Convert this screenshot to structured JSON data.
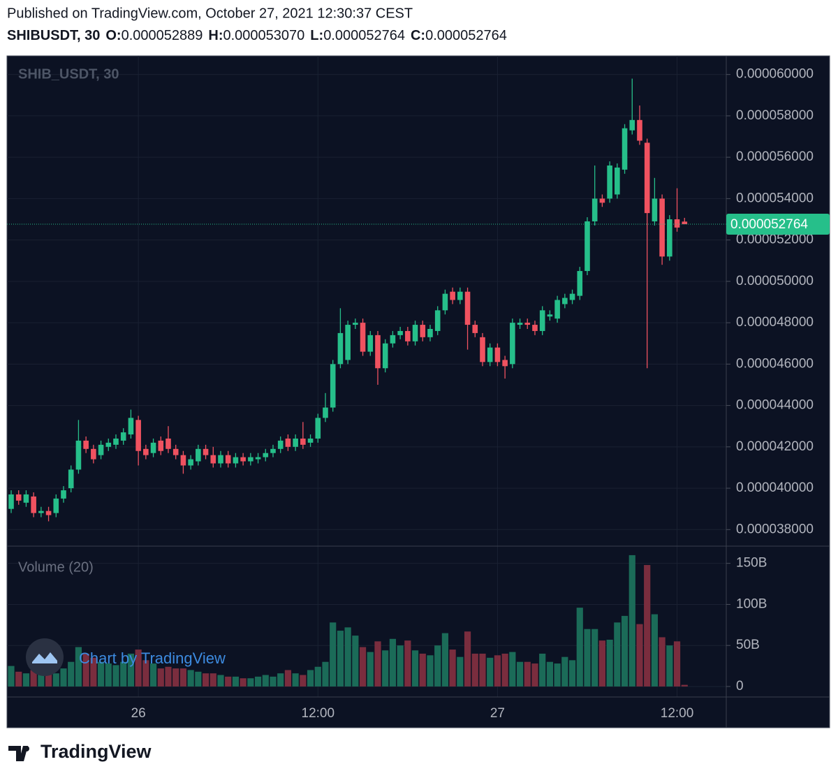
{
  "header": {
    "published": "Published on TradingView.com, October 27, 2021 12:30:37 CEST",
    "symbol": "SHIBUSDT, 30",
    "o_key": "O:",
    "o": "0.000052889",
    "h_key": "H:",
    "h": "0.000053070",
    "l_key": "L:",
    "l": "0.000052764",
    "c_key": "C:",
    "c": "0.000052764"
  },
  "footer": {
    "watermark": "Chart by TradingView",
    "brand": "TradingView"
  },
  "chart_data": {
    "type": "candlestick",
    "title": "SHIB_USDT, 30",
    "volume_title": "Volume (20)",
    "categories": [
      null,
      null,
      null,
      null,
      null,
      null,
      null,
      null,
      null,
      null,
      null,
      null,
      null,
      null,
      null,
      null,
      null,
      "26",
      null,
      null,
      null,
      null,
      null,
      null,
      null,
      null,
      null,
      null,
      null,
      null,
      null,
      null,
      null,
      null,
      null,
      null,
      null,
      null,
      null,
      null,
      null,
      "12:00",
      null,
      null,
      null,
      null,
      null,
      null,
      null,
      null,
      null,
      null,
      null,
      null,
      null,
      null,
      null,
      null,
      null,
      null,
      null,
      null,
      null,
      null,
      null,
      "27",
      null,
      null,
      null,
      null,
      null,
      null,
      null,
      null,
      null,
      null,
      null,
      null,
      null,
      null,
      null,
      null,
      null,
      null,
      null,
      null,
      null,
      null,
      null,
      "12:00",
      null
    ],
    "open": [
      3.9e-05,
      3.97e-05,
      3.93e-05,
      3.96e-05,
      3.88e-05,
      3.89e-05,
      3.88e-05,
      3.95e-05,
      4e-05,
      4.09e-05,
      4.23e-05,
      4.19e-05,
      4.16e-05,
      4.2e-05,
      4.21e-05,
      4.23e-05,
      4.26e-05,
      4.33e-05,
      4.19e-05,
      4.17e-05,
      4.23e-05,
      4.24e-05,
      4.19e-05,
      4.16e-05,
      4.11e-05,
      4.13e-05,
      4.19e-05,
      4.16e-05,
      4.12e-05,
      4.16e-05,
      4.12e-05,
      4.15e-05,
      4.13e-05,
      4.14e-05,
      4.15e-05,
      4.17e-05,
      4.19e-05,
      4.24e-05,
      4.2e-05,
      4.24e-05,
      4.22e-05,
      4.24e-05,
      4.34e-05,
      4.39e-05,
      4.6e-05,
      4.62e-05,
      4.79e-05,
      4.8e-05,
      4.66e-05,
      4.74e-05,
      4.58e-05,
      4.7e-05,
      4.74e-05,
      4.76e-05,
      4.71e-05,
      4.79e-05,
      4.73e-05,
      4.76e-05,
      4.86e-05,
      4.95e-05,
      4.91e-05,
      4.95e-05,
      4.79e-05,
      4.73e-05,
      4.61e-05,
      4.68e-05,
      4.62e-05,
      4.6e-05,
      4.79e-05,
      4.8e-05,
      4.79e-05,
      4.76e-05,
      4.83e-05,
      4.82e-05,
      4.89e-05,
      4.91e-05,
      4.93e-05,
      5.05e-05,
      5.29e-05,
      5.4e-05,
      5.4e-05,
      5.42e-05,
      5.54e-05,
      5.73e-05,
      5.78e-05,
      5.67e-05,
      5.29e-05,
      5.4e-05,
      5.12e-05,
      5.3e-05,
      5.2889e-05
    ],
    "high": [
      3.99e-05,
      3.99e-05,
      3.99e-05,
      3.98e-05,
      3.91e-05,
      3.91e-05,
      3.97e-05,
      4.01e-05,
      4.11e-05,
      4.33e-05,
      4.25e-05,
      4.21e-05,
      4.23e-05,
      4.24e-05,
      4.26e-05,
      4.29e-05,
      4.38e-05,
      4.35e-05,
      4.21e-05,
      4.24e-05,
      4.25e-05,
      4.3e-05,
      4.21e-05,
      4.18e-05,
      4.16e-05,
      4.21e-05,
      4.21e-05,
      4.2e-05,
      4.18e-05,
      4.18e-05,
      4.17e-05,
      4.17e-05,
      4.17e-05,
      4.17e-05,
      4.19e-05,
      4.21e-05,
      4.25e-05,
      4.26e-05,
      4.26e-05,
      4.32e-05,
      4.26e-05,
      4.36e-05,
      4.46e-05,
      4.62e-05,
      4.87e-05,
      4.81e-05,
      4.82e-05,
      4.82e-05,
      4.76e-05,
      4.76e-05,
      4.72e-05,
      4.76e-05,
      4.78e-05,
      4.78e-05,
      4.81e-05,
      4.81e-05,
      4.79e-05,
      4.88e-05,
      4.96e-05,
      4.97e-05,
      4.97e-05,
      4.97e-05,
      4.81e-05,
      4.75e-05,
      4.7e-05,
      4.7e-05,
      4.64e-05,
      4.82e-05,
      4.82e-05,
      4.82e-05,
      4.81e-05,
      4.88e-05,
      4.86e-05,
      4.93e-05,
      4.94e-05,
      4.96e-05,
      5.07e-05,
      5.31e-05,
      5.56e-05,
      5.42e-05,
      5.58e-05,
      5.57e-05,
      5.76e-05,
      5.98e-05,
      5.85e-05,
      5.69e-05,
      5.5e-05,
      5.42e-05,
      5.32e-05,
      5.45e-05,
      5.307e-05
    ],
    "low": [
      3.88e-05,
      3.92e-05,
      3.91e-05,
      3.86e-05,
      3.86e-05,
      3.84e-05,
      3.86e-05,
      3.93e-05,
      3.98e-05,
      4.07e-05,
      4.17e-05,
      4.12e-05,
      4.14e-05,
      4.18e-05,
      4.19e-05,
      4.21e-05,
      4.24e-05,
      4.11e-05,
      4.14e-05,
      4.15e-05,
      4.16e-05,
      4.17e-05,
      4.14e-05,
      4.07e-05,
      4.09e-05,
      4.11e-05,
      4.14e-05,
      4.1e-05,
      4.1e-05,
      4.1e-05,
      4.1e-05,
      4.11e-05,
      4.11e-05,
      4.12e-05,
      4.13e-05,
      4.15e-05,
      4.17e-05,
      4.18e-05,
      4.18e-05,
      4.19e-05,
      4.2e-05,
      4.22e-05,
      4.32e-05,
      4.37e-05,
      4.58e-05,
      4.6e-05,
      4.77e-05,
      4.64e-05,
      4.64e-05,
      4.5e-05,
      4.56e-05,
      4.68e-05,
      4.72e-05,
      4.69e-05,
      4.69e-05,
      4.71e-05,
      4.71e-05,
      4.74e-05,
      4.84e-05,
      4.89e-05,
      4.89e-05,
      4.67e-05,
      4.73e-05,
      4.59e-05,
      4.59e-05,
      4.59e-05,
      4.53e-05,
      4.58e-05,
      4.77e-05,
      4.77e-05,
      4.74e-05,
      4.74e-05,
      4.81e-05,
      4.8e-05,
      4.87e-05,
      4.89e-05,
      4.91e-05,
      5.03e-05,
      5.27e-05,
      5.36e-05,
      5.38e-05,
      5.4e-05,
      5.52e-05,
      5.71e-05,
      5.66e-05,
      4.58e-05,
      5.27e-05,
      5.08e-05,
      5.1e-05,
      5.24e-05,
      5.2764e-05
    ],
    "close": [
      3.97e-05,
      3.94e-05,
      3.97e-05,
      3.88e-05,
      3.89e-05,
      3.87e-05,
      3.95e-05,
      3.99e-05,
      4.09e-05,
      4.23e-05,
      4.19e-05,
      4.14e-05,
      4.21e-05,
      4.22e-05,
      4.24e-05,
      4.27e-05,
      4.34e-05,
      4.18e-05,
      4.16e-05,
      4.22e-05,
      4.18e-05,
      4.19e-05,
      4.16e-05,
      4.11e-05,
      4.14e-05,
      4.19e-05,
      4.16e-05,
      4.12e-05,
      4.16e-05,
      4.12e-05,
      4.15e-05,
      4.13e-05,
      4.15e-05,
      4.15e-05,
      4.17e-05,
      4.19e-05,
      4.23e-05,
      4.2e-05,
      4.24e-05,
      4.21e-05,
      4.24e-05,
      4.34e-05,
      4.39e-05,
      4.6e-05,
      4.75e-05,
      4.79e-05,
      4.8e-05,
      4.66e-05,
      4.74e-05,
      4.58e-05,
      4.7e-05,
      4.74e-05,
      4.76e-05,
      4.71e-05,
      4.79e-05,
      4.73e-05,
      4.77e-05,
      4.86e-05,
      4.94e-05,
      4.91e-05,
      4.95e-05,
      4.79e-05,
      4.75e-05,
      4.61e-05,
      4.68e-05,
      4.61e-05,
      4.59e-05,
      4.8e-05,
      4.8e-05,
      4.79e-05,
      4.76e-05,
      4.86e-05,
      4.84e-05,
      4.91e-05,
      4.92e-05,
      4.94e-05,
      5.05e-05,
      5.29e-05,
      5.4e-05,
      5.38e-05,
      5.56e-05,
      5.55e-05,
      5.74e-05,
      5.78e-05,
      5.68e-05,
      5.33e-05,
      5.4e-05,
      5.12e-05,
      5.3e-05,
      5.26e-05,
      5.2764e-05
    ],
    "volume": [
      25,
      18,
      16,
      20,
      17,
      15,
      16,
      22,
      30,
      48,
      40,
      35,
      30,
      28,
      26,
      30,
      40,
      45,
      32,
      28,
      22,
      24,
      22,
      22,
      20,
      18,
      16,
      16,
      14,
      12,
      12,
      10,
      10,
      12,
      14,
      12,
      16,
      20,
      16,
      14,
      20,
      24,
      30,
      78,
      68,
      72,
      62,
      48,
      42,
      55,
      44,
      58,
      50,
      56,
      44,
      40,
      38,
      50,
      65,
      45,
      36,
      67,
      40,
      40,
      35,
      38,
      40,
      42,
      30,
      30,
      28,
      40,
      30,
      28,
      36,
      32,
      96,
      70,
      70,
      56,
      57,
      78,
      86,
      160,
      76,
      148,
      88,
      60,
      50,
      55,
      2
    ],
    "ylim": [
      3.72e-05,
      6.09e-05
    ],
    "yticks": [
      {
        "value": 3.8e-05,
        "label": "0.000038000"
      },
      {
        "value": 4e-05,
        "label": "0.000040000"
      },
      {
        "value": 4.2e-05,
        "label": "0.000042000"
      },
      {
        "value": 4.4e-05,
        "label": "0.000044000"
      },
      {
        "value": 4.6e-05,
        "label": "0.000046000"
      },
      {
        "value": 4.8e-05,
        "label": "0.000048000"
      },
      {
        "value": 5e-05,
        "label": "0.000050000"
      },
      {
        "value": 5.2e-05,
        "label": "0.000052000"
      },
      {
        "value": 5.4e-05,
        "label": "0.000054000"
      },
      {
        "value": 5.6e-05,
        "label": "0.000056000"
      },
      {
        "value": 5.8e-05,
        "label": "0.000058000"
      },
      {
        "value": 6e-05,
        "label": "0.000060000"
      }
    ],
    "volume_ylim": [
      -12.8,
      171
    ],
    "volume_yticks": [
      0,
      {
        "value": 50,
        "label": "50B"
      },
      {
        "value": 100,
        "label": "100B"
      },
      {
        "value": 150,
        "label": "150B"
      }
    ],
    "grid": true,
    "up_color": "#26bf8a",
    "down_color": "#f05260",
    "volume_up_color": "#1b6b58",
    "volume_down_color": "#7a2d3e"
  }
}
